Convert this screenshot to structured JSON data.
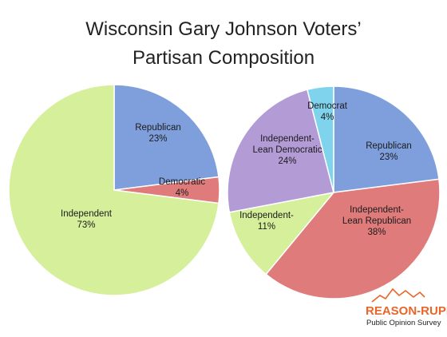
{
  "title_line1": "Wisconsin Gary Johnson Voters’",
  "title_line2": "Partisan Composition",
  "chart_data": [
    {
      "type": "pie",
      "title": "",
      "slices": [
        {
          "label": "Republican",
          "value": 23,
          "value_label": "23%",
          "color": "#7f9fdc"
        },
        {
          "label": "Democratic",
          "value": 4,
          "value_label": "4%",
          "color": "#e07b7b"
        },
        {
          "label": "Independent",
          "value": 73,
          "value_label": "73%",
          "color": "#d6ef9b"
        }
      ]
    },
    {
      "type": "pie",
      "title": "",
      "slices": [
        {
          "label": "Republican",
          "value": 23,
          "value_label": "23%",
          "color": "#7f9fdc"
        },
        {
          "label": "Independent-\nLean Republican",
          "value": 38,
          "value_label": "38%",
          "color": "#e07b7b"
        },
        {
          "label": "Independent-",
          "value": 11,
          "value_label": "11%",
          "color": "#d6ef9b"
        },
        {
          "label": "Independent-\nLean Democratic",
          "value": 24,
          "value_label": "24%",
          "color": "#b39bd6"
        },
        {
          "label": "Democrat",
          "value": 4,
          "value_label": "4%",
          "color": "#7fd3ec"
        }
      ]
    }
  ],
  "logo": {
    "name": "REASON-RUPE",
    "subtitle": "Public Opinion Survey"
  }
}
